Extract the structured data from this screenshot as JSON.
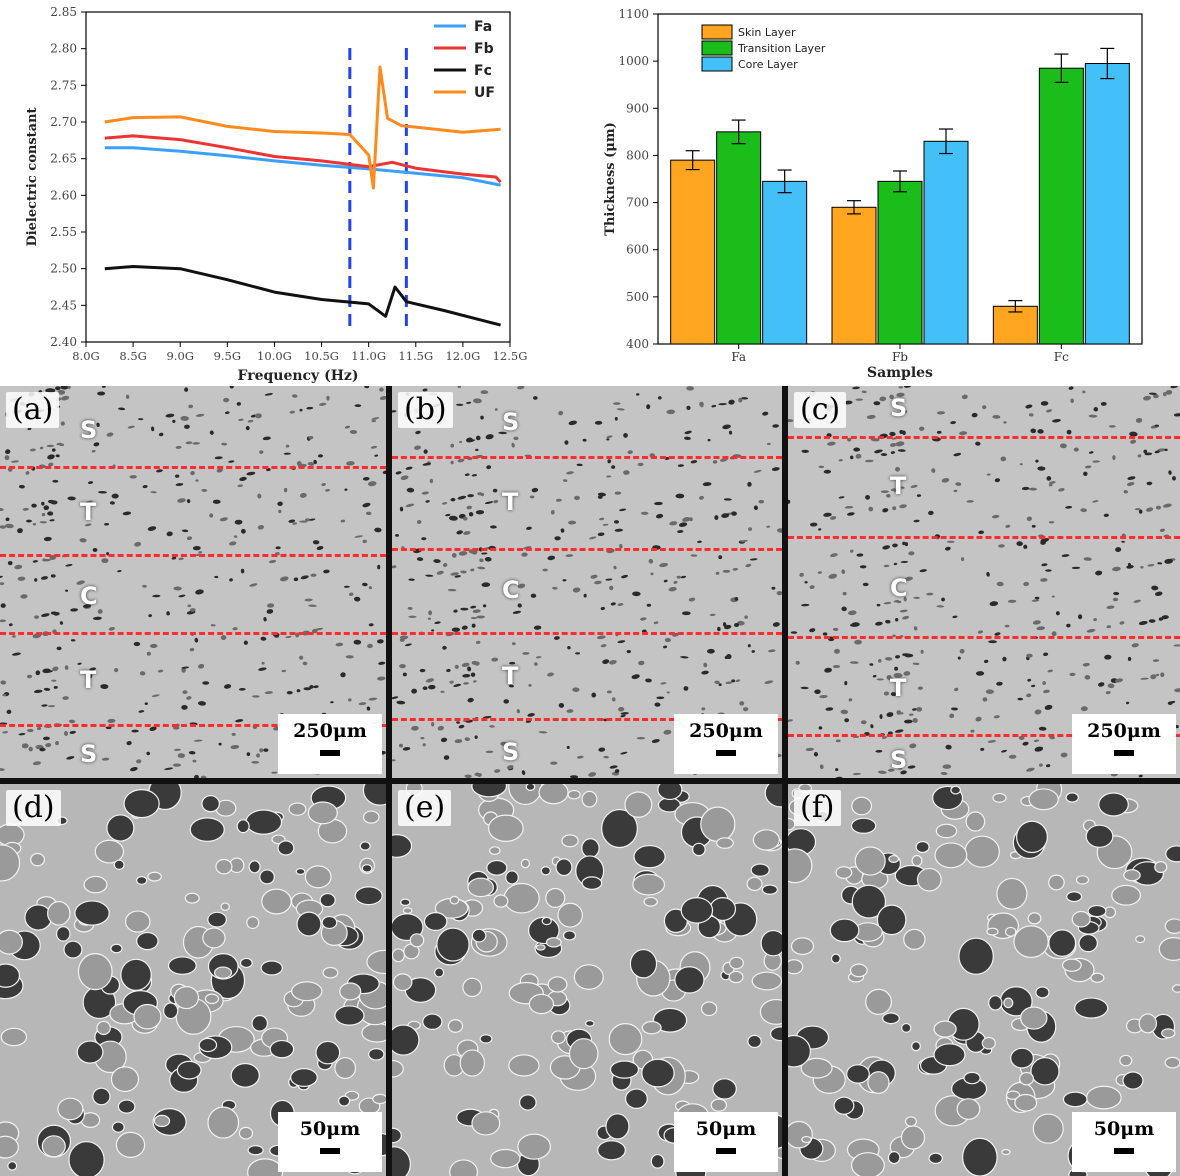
{
  "chart_data": [
    {
      "type": "line",
      "xlabel": "Frequency (Hz)",
      "ylabel": "Dielectric constant",
      "xlim": [
        8.0,
        12.5
      ],
      "ylim": [
        2.4,
        2.85
      ],
      "x_ticks": [
        8.0,
        8.5,
        9.0,
        9.5,
        10.0,
        10.5,
        11.0,
        11.5,
        12.0,
        12.5
      ],
      "x_tick_labels": [
        "8.0G",
        "8.5G",
        "9.0G",
        "9.5G",
        "10.0G",
        "10.5G",
        "11.0G",
        "11.5G",
        "12.0G",
        "12.5G"
      ],
      "y_ticks": [
        "2.40",
        "2.45",
        "2.50",
        "2.55",
        "2.60",
        "2.65",
        "2.70",
        "2.75",
        "2.80",
        "2.85"
      ],
      "legend_position": "top-right",
      "grid": false,
      "vertical_markers": [
        10.8,
        11.4
      ],
      "vertical_marker_color": "#2244ee",
      "series": [
        {
          "name": "Fa",
          "color": "#3aa0ff",
          "x": [
            8.2,
            8.5,
            9.0,
            9.5,
            10.0,
            10.5,
            11.0,
            11.5,
            12.0,
            12.4
          ],
          "y": [
            2.665,
            2.665,
            2.66,
            2.654,
            2.647,
            2.641,
            2.636,
            2.63,
            2.624,
            2.614
          ]
        },
        {
          "name": "Fb",
          "color": "#ee3333",
          "x": [
            8.2,
            8.5,
            9.0,
            9.5,
            10.0,
            10.5,
            11.0,
            11.25,
            11.5,
            12.0,
            12.35,
            12.4
          ],
          "y": [
            2.678,
            2.681,
            2.676,
            2.665,
            2.653,
            2.647,
            2.639,
            2.645,
            2.637,
            2.629,
            2.625,
            2.618
          ]
        },
        {
          "name": "Fc",
          "color": "#111111",
          "x": [
            8.2,
            8.5,
            9.0,
            9.5,
            10.0,
            10.5,
            11.0,
            11.18,
            11.28,
            11.4,
            11.8,
            12.1,
            12.4
          ],
          "y": [
            2.5,
            2.503,
            2.5,
            2.485,
            2.468,
            2.458,
            2.452,
            2.435,
            2.475,
            2.455,
            2.443,
            2.433,
            2.423
          ]
        },
        {
          "name": "UF",
          "color": "#ff8a1e",
          "x": [
            8.2,
            8.5,
            9.0,
            9.5,
            10.0,
            10.5,
            10.8,
            11.0,
            11.05,
            11.12,
            11.2,
            11.35,
            11.5,
            12.0,
            12.4
          ],
          "y": [
            2.7,
            2.706,
            2.707,
            2.694,
            2.687,
            2.685,
            2.683,
            2.655,
            2.61,
            2.775,
            2.705,
            2.695,
            2.693,
            2.686,
            2.69
          ]
        }
      ]
    },
    {
      "type": "bar",
      "xlabel": "Samples",
      "ylabel": "Thickness (μm)",
      "categories": [
        "Fa",
        "Fb",
        "Fc"
      ],
      "ylim": [
        400,
        1100
      ],
      "y_ticks": [
        "400",
        "500",
        "600",
        "700",
        "800",
        "900",
        "1000",
        "1100"
      ],
      "legend_position": "top-left",
      "grid": false,
      "series": [
        {
          "name": "Skin Layer",
          "color": "#ffa51f",
          "values": [
            790,
            690,
            480
          ],
          "errors": [
            20,
            14,
            12
          ]
        },
        {
          "name": "Transition Layer",
          "color": "#1bbd1b",
          "values": [
            850,
            745,
            985
          ],
          "errors": [
            25,
            22,
            30
          ]
        },
        {
          "name": "Core Layer",
          "color": "#44c0f8",
          "values": [
            745,
            830,
            995
          ],
          "errors": [
            24,
            26,
            32
          ]
        }
      ]
    }
  ],
  "sem_panels": [
    {
      "letter": "(a)",
      "scale": "250μm",
      "layers": [
        "S",
        "T",
        "C",
        "T",
        "S"
      ]
    },
    {
      "letter": "(b)",
      "scale": "250μm",
      "layers": [
        "S",
        "T",
        "C",
        "T",
        "S"
      ]
    },
    {
      "letter": "(c)",
      "scale": "250μm",
      "layers": [
        "S",
        "T",
        "C",
        "T",
        "S"
      ]
    },
    {
      "letter": "(d)",
      "scale": "50μm"
    },
    {
      "letter": "(e)",
      "scale": "50μm"
    },
    {
      "letter": "(f)",
      "scale": "50μm"
    }
  ]
}
